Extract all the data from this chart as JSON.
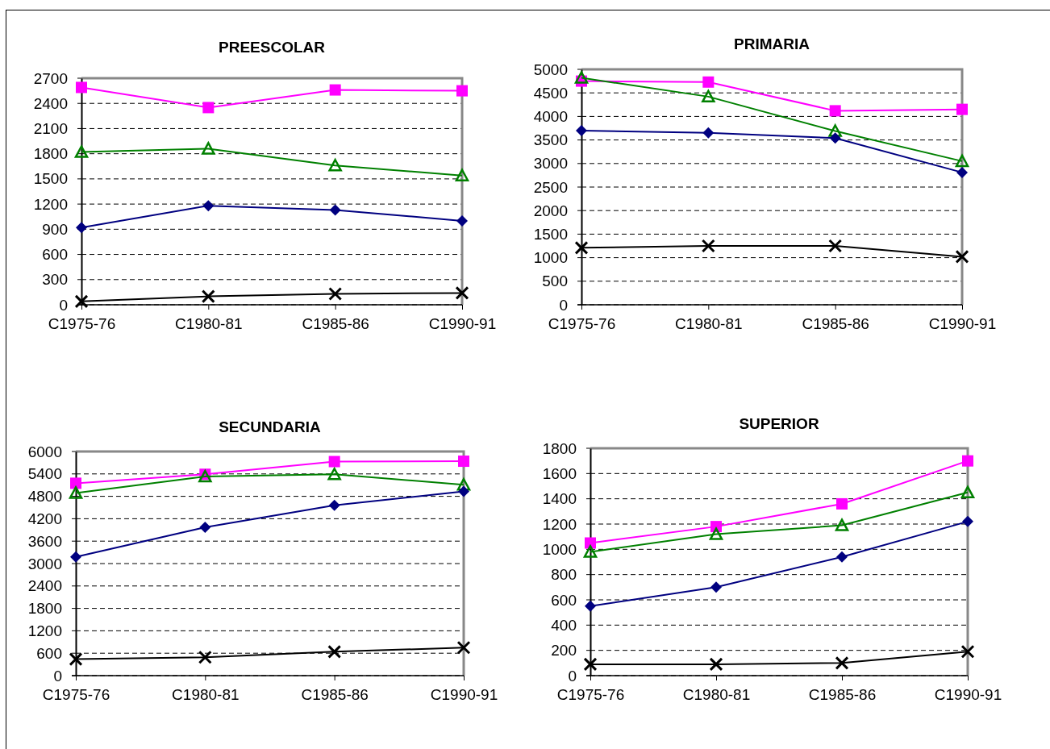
{
  "chart_data": [
    {
      "type": "line",
      "title": "PREESCOLAR",
      "categories": [
        "C1975-76",
        "C1980-81",
        "C1985-86",
        "C1990-91"
      ],
      "ylim": [
        0,
        2700
      ],
      "yticks": [
        0,
        300,
        600,
        900,
        1200,
        1500,
        1800,
        2100,
        2400,
        2700
      ],
      "grid": "y",
      "series": [
        {
          "color": "#ff00ff",
          "marker": "square",
          "values": [
            2590,
            2350,
            2560,
            2550
          ]
        },
        {
          "color": "#008000",
          "marker": "triangle",
          "values": [
            1820,
            1860,
            1660,
            1540
          ]
        },
        {
          "color": "#000080",
          "marker": "diamond",
          "values": [
            920,
            1180,
            1130,
            1000
          ]
        },
        {
          "color": "#000000",
          "marker": "cross",
          "values": [
            40,
            100,
            130,
            140
          ]
        }
      ]
    },
    {
      "type": "line",
      "title": "PRIMARIA",
      "categories": [
        "C1975-76",
        "C1980-81",
        "C1985-86",
        "C1990-91"
      ],
      "ylim": [
        0,
        5000
      ],
      "yticks": [
        0,
        500,
        1000,
        1500,
        2000,
        2500,
        3000,
        3500,
        4000,
        4500,
        5000
      ],
      "grid": "y",
      "series": [
        {
          "color": "#ff00ff",
          "marker": "square",
          "values": [
            4750,
            4730,
            4120,
            4150
          ]
        },
        {
          "color": "#008000",
          "marker": "triangle",
          "values": [
            4820,
            4420,
            3690,
            3050
          ]
        },
        {
          "color": "#000080",
          "marker": "diamond",
          "values": [
            3700,
            3650,
            3540,
            2810
          ]
        },
        {
          "color": "#000000",
          "marker": "cross",
          "values": [
            1210,
            1250,
            1250,
            1020
          ]
        }
      ]
    },
    {
      "type": "line",
      "title": "SECUNDARIA",
      "categories": [
        "C1975-76",
        "C1980-81",
        "C1985-86",
        "C1990-91"
      ],
      "ylim": [
        0,
        6000
      ],
      "yticks": [
        0,
        600,
        1200,
        1800,
        2400,
        3000,
        3600,
        4200,
        4800,
        5400,
        6000
      ],
      "grid": "y",
      "series": [
        {
          "color": "#ff00ff",
          "marker": "square",
          "values": [
            5150,
            5390,
            5730,
            5740
          ]
        },
        {
          "color": "#008000",
          "marker": "triangle",
          "values": [
            4890,
            5330,
            5390,
            5110
          ]
        },
        {
          "color": "#000080",
          "marker": "diamond",
          "values": [
            3180,
            3970,
            4560,
            4930
          ]
        },
        {
          "color": "#000000",
          "marker": "cross",
          "values": [
            440,
            490,
            640,
            750
          ]
        }
      ]
    },
    {
      "type": "line",
      "title": "SUPERIOR",
      "categories": [
        "C1975-76",
        "C1980-81",
        "C1985-86",
        "C1990-91"
      ],
      "ylim": [
        0,
        1800
      ],
      "yticks": [
        0,
        200,
        400,
        600,
        800,
        1000,
        1200,
        1400,
        1600,
        1800
      ],
      "grid": "y",
      "series": [
        {
          "color": "#ff00ff",
          "marker": "square",
          "values": [
            1050,
            1180,
            1360,
            1700
          ]
        },
        {
          "color": "#008000",
          "marker": "triangle",
          "values": [
            980,
            1120,
            1190,
            1450
          ]
        },
        {
          "color": "#000080",
          "marker": "diamond",
          "values": [
            550,
            700,
            940,
            1220
          ]
        },
        {
          "color": "#000000",
          "marker": "cross",
          "values": [
            90,
            90,
            100,
            190
          ]
        }
      ]
    }
  ]
}
